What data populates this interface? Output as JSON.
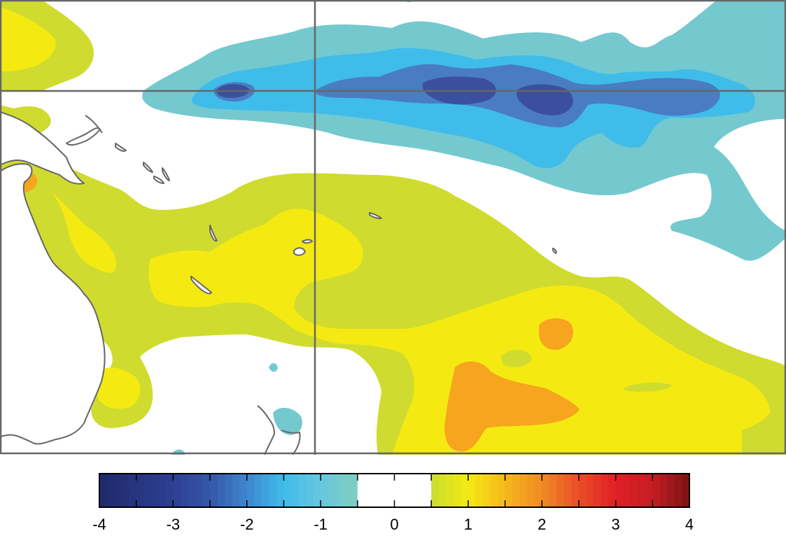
{
  "map": {
    "colors": {
      "deep_blue": "#3b4fa0",
      "mid_blue": "#4a7cc4",
      "light_blue": "#3fbcea",
      "teal": "#74c9cf",
      "yellow_green": "#cfdc2f",
      "yellow": "#f4ea12",
      "orange": "#f7a51e",
      "land": "#ffffff",
      "coast": "#666666",
      "gridline": "#666666",
      "frame": "#666666"
    }
  },
  "colorbar": {
    "min": -4,
    "max": 4,
    "white_band": [
      -0.5,
      0.5
    ],
    "ticks": [
      "-4",
      "-3",
      "-2",
      "-1",
      "0",
      "1",
      "2",
      "3",
      "4"
    ],
    "stops": [
      {
        "v": -4,
        "c": "#1f2a6b"
      },
      {
        "v": -3,
        "c": "#2e3f92"
      },
      {
        "v": -2.5,
        "c": "#3556a8"
      },
      {
        "v": -2,
        "c": "#3f86cf"
      },
      {
        "v": -1.5,
        "c": "#3fbcea"
      },
      {
        "v": -1,
        "c": "#67c7de"
      },
      {
        "v": -0.5,
        "c": "#7ecfbf"
      },
      {
        "v": 0.5,
        "c": "#c9db2e"
      },
      {
        "v": 1,
        "c": "#f4ea12"
      },
      {
        "v": 1.5,
        "c": "#f6b81c"
      },
      {
        "v": 2,
        "c": "#f08a24"
      },
      {
        "v": 2.5,
        "c": "#e84e26"
      },
      {
        "v": 3,
        "c": "#e01f26"
      },
      {
        "v": 3.5,
        "c": "#c41e23"
      },
      {
        "v": 4,
        "c": "#7a1212"
      }
    ]
  }
}
